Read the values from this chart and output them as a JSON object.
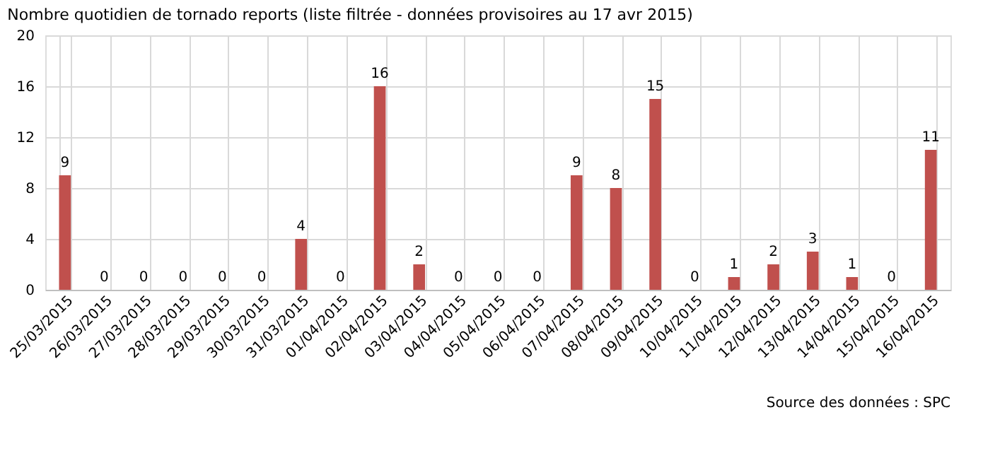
{
  "chart_data": {
    "type": "bar",
    "title": "Nombre quotidien de tornado reports (liste filtrée - données provisoires au 17 avr 2015)",
    "categories": [
      "25/03/2015",
      "26/03/2015",
      "27/03/2015",
      "28/03/2015",
      "29/03/2015",
      "30/03/2015",
      "31/03/2015",
      "01/04/2015",
      "02/04/2015",
      "03/04/2015",
      "04/04/2015",
      "05/04/2015",
      "06/04/2015",
      "07/04/2015",
      "08/04/2015",
      "09/04/2015",
      "10/04/2015",
      "11/04/2015",
      "12/04/2015",
      "13/04/2015",
      "14/04/2015",
      "15/04/2015",
      "16/04/2015"
    ],
    "values": [
      9,
      0,
      0,
      0,
      0,
      0,
      4,
      0,
      16,
      2,
      0,
      0,
      0,
      9,
      8,
      15,
      0,
      1,
      2,
      3,
      1,
      0,
      11
    ],
    "color": "#c0504d",
    "ylim": [
      0,
      20
    ],
    "yticks": [
      0,
      4,
      8,
      12,
      16,
      20
    ],
    "grid": true,
    "data_labels": true,
    "annotations": [
      "Source des données : SPC"
    ]
  }
}
